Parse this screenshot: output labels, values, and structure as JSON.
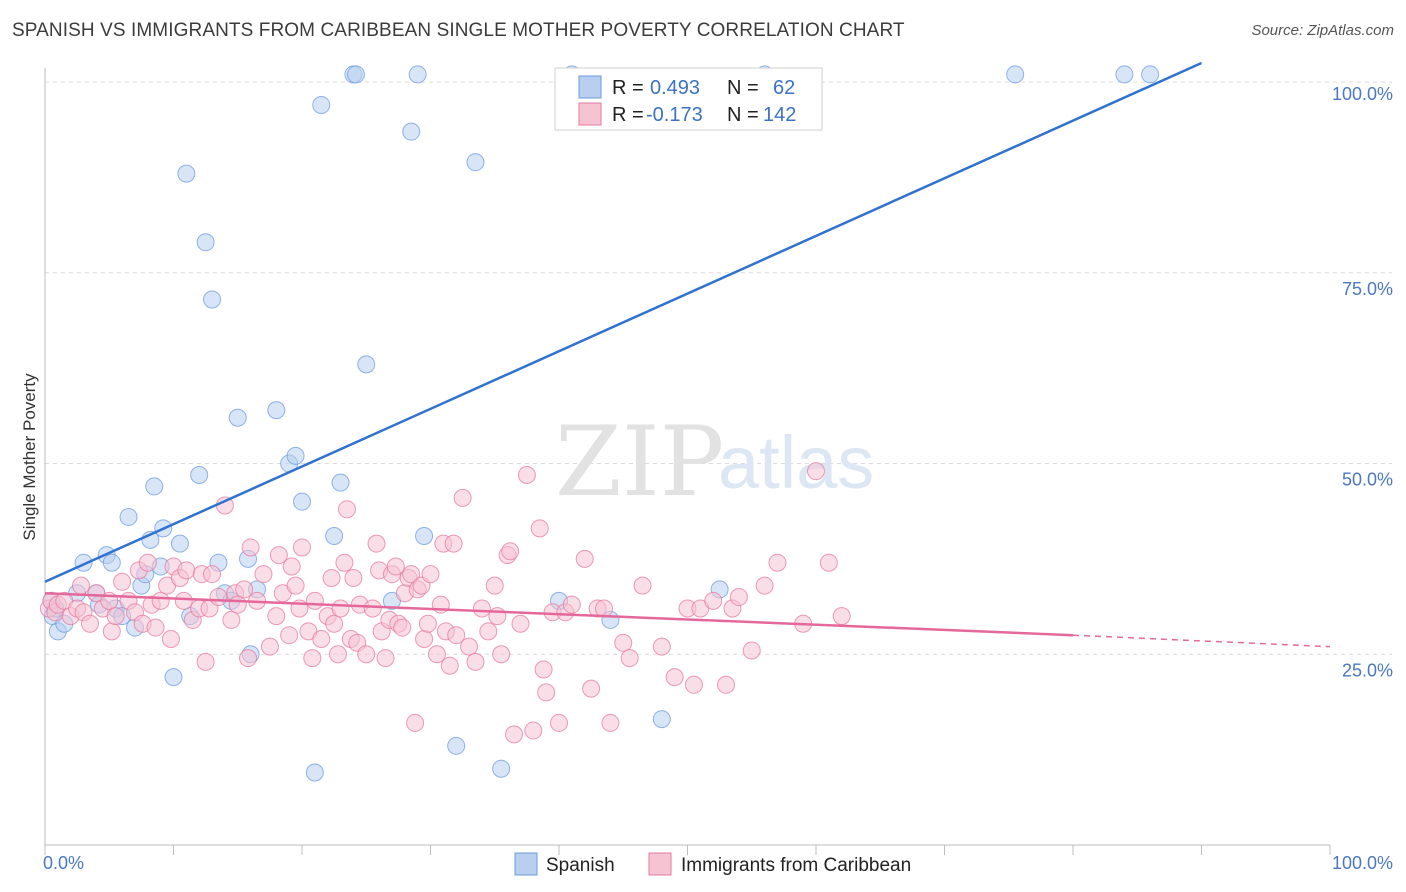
{
  "title": "SPANISH VS IMMIGRANTS FROM CARIBBEAN SINGLE MOTHER POVERTY CORRELATION CHART",
  "source": "Source: ZipAtlas.com",
  "watermark": {
    "zip": "ZIP",
    "atlas": "atlas"
  },
  "legend_box": {
    "rows": [
      {
        "r_label": "R =",
        "r_value": "0.493",
        "n_label": "N =",
        "n_value": "62",
        "color": "#a9c4ec"
      },
      {
        "r_label": "R =",
        "r_value": "-0.173",
        "n_label": "N =",
        "n_value": "142",
        "color": "#f4b3c8"
      }
    ]
  },
  "bottom_legend": {
    "spanish": "Spanish",
    "caribbean": "Immigrants from Caribbean"
  },
  "chart_data": {
    "type": "scatter",
    "title": "SPANISH VS IMMIGRANTS FROM CARIBBEAN SINGLE MOTHER POVERTY CORRELATION CHART",
    "xlabel": "",
    "ylabel": "Single Mother Poverty",
    "xlim": [
      0,
      100
    ],
    "ylim": [
      0,
      105
    ],
    "x_tick_labels": [
      "0.0%",
      "100.0%"
    ],
    "y_tick_labels": [
      "25.0%",
      "50.0%",
      "75.0%",
      "100.0%"
    ],
    "y_ticks": [
      25,
      50,
      75,
      100
    ],
    "grid": true,
    "legend_position": "top-center",
    "series": [
      {
        "name": "Spanish",
        "color": "#6d9be0",
        "fill": "#b8cff0",
        "trend": {
          "x": [
            0,
            90
          ],
          "y": [
            34.5,
            102.5
          ]
        },
        "points": [
          [
            0.5,
            32
          ],
          [
            0.6,
            30
          ],
          [
            0.8,
            31
          ],
          [
            1,
            28
          ],
          [
            1.5,
            29
          ],
          [
            2.5,
            33
          ],
          [
            3,
            37
          ],
          [
            4,
            33
          ],
          [
            4.2,
            31.5
          ],
          [
            4.8,
            38
          ],
          [
            5.2,
            37
          ],
          [
            5.5,
            31
          ],
          [
            6,
            30
          ],
          [
            6.5,
            43
          ],
          [
            7,
            28.5
          ],
          [
            7.5,
            34
          ],
          [
            7.8,
            35.5
          ],
          [
            8.2,
            40
          ],
          [
            8.5,
            47
          ],
          [
            9,
            36.5
          ],
          [
            9.2,
            41.5
          ],
          [
            10,
            22
          ],
          [
            10.5,
            39.5
          ],
          [
            11,
            88
          ],
          [
            11.3,
            30
          ],
          [
            12,
            48.5
          ],
          [
            12.5,
            79
          ],
          [
            13,
            71.5
          ],
          [
            13.5,
            37
          ],
          [
            14,
            33
          ],
          [
            14.5,
            32
          ],
          [
            15,
            56
          ],
          [
            15.8,
            37.5
          ],
          [
            16,
            25
          ],
          [
            16.5,
            33.5
          ],
          [
            18,
            57
          ],
          [
            19,
            50
          ],
          [
            19.5,
            51
          ],
          [
            20,
            45
          ],
          [
            21,
            9.5
          ],
          [
            21.5,
            97
          ],
          [
            22.5,
            40.5
          ],
          [
            23,
            47.5
          ],
          [
            24,
            101
          ],
          [
            24.2,
            101
          ],
          [
            25,
            63
          ],
          [
            27,
            32
          ],
          [
            28.5,
            93.5
          ],
          [
            29,
            101
          ],
          [
            29.5,
            40.5
          ],
          [
            32,
            13
          ],
          [
            33.5,
            89.5
          ],
          [
            35.5,
            10
          ],
          [
            40,
            32
          ],
          [
            41,
            101
          ],
          [
            44,
            29.5
          ],
          [
            48,
            16.5
          ],
          [
            52.5,
            33.5
          ],
          [
            56,
            101
          ],
          [
            75.5,
            101
          ],
          [
            84,
            101
          ],
          [
            86,
            101
          ]
        ]
      },
      {
        "name": "Immigrants from Caribbean",
        "color": "#e77a9f",
        "fill": "#f6c3d3",
        "trend": {
          "x": [
            0,
            80
          ],
          "y": [
            33.0,
            27.5
          ],
          "dash_to": [
            100,
            26.0
          ]
        },
        "points": [
          [
            0.3,
            31
          ],
          [
            0.5,
            32
          ],
          [
            0.8,
            30.5
          ],
          [
            1,
            31.5
          ],
          [
            1.5,
            32
          ],
          [
            2,
            30
          ],
          [
            2.5,
            31
          ],
          [
            2.8,
            34
          ],
          [
            3,
            30.5
          ],
          [
            3.5,
            29
          ],
          [
            4,
            33
          ],
          [
            4.5,
            31
          ],
          [
            5,
            32
          ],
          [
            5.2,
            28
          ],
          [
            5.5,
            30
          ],
          [
            6,
            34.5
          ],
          [
            6.5,
            32
          ],
          [
            7,
            30.5
          ],
          [
            7.3,
            36
          ],
          [
            7.6,
            29
          ],
          [
            8,
            37
          ],
          [
            8.3,
            31.5
          ],
          [
            8.6,
            28.5
          ],
          [
            9,
            32
          ],
          [
            9.5,
            34
          ],
          [
            9.8,
            27
          ],
          [
            10,
            36.5
          ],
          [
            10.5,
            35
          ],
          [
            10.8,
            32
          ],
          [
            11,
            36
          ],
          [
            11.5,
            29.5
          ],
          [
            12,
            31
          ],
          [
            12.2,
            35.5
          ],
          [
            12.5,
            24
          ],
          [
            12.8,
            31
          ],
          [
            13,
            35.5
          ],
          [
            13.5,
            32.5
          ],
          [
            14,
            44.5
          ],
          [
            14.5,
            29.5
          ],
          [
            14.8,
            33
          ],
          [
            15,
            31.5
          ],
          [
            15.5,
            33.5
          ],
          [
            15.8,
            24.5
          ],
          [
            16,
            39
          ],
          [
            16.5,
            32
          ],
          [
            17,
            35.5
          ],
          [
            17.5,
            26
          ],
          [
            18,
            30
          ],
          [
            18.2,
            38
          ],
          [
            18.5,
            33
          ],
          [
            19,
            27.5
          ],
          [
            19.2,
            36.5
          ],
          [
            19.5,
            34
          ],
          [
            19.8,
            31
          ],
          [
            20,
            39
          ],
          [
            20.5,
            28
          ],
          [
            20.8,
            24.5
          ],
          [
            21,
            32
          ],
          [
            21.5,
            27
          ],
          [
            22,
            30
          ],
          [
            22.3,
            35
          ],
          [
            22.5,
            29
          ],
          [
            22.8,
            25
          ],
          [
            23,
            31
          ],
          [
            23.3,
            37
          ],
          [
            23.5,
            44
          ],
          [
            23.8,
            27
          ],
          [
            24,
            35
          ],
          [
            24.3,
            26.5
          ],
          [
            24.5,
            31.5
          ],
          [
            25,
            25
          ],
          [
            25.5,
            31
          ],
          [
            25.8,
            39.5
          ],
          [
            26,
            36
          ],
          [
            26.2,
            28
          ],
          [
            26.5,
            24.5
          ],
          [
            26.8,
            29.5
          ],
          [
            27,
            35.5
          ],
          [
            27.3,
            36.5
          ],
          [
            27.5,
            29
          ],
          [
            27.8,
            28.5
          ],
          [
            28,
            33
          ],
          [
            28.3,
            35
          ],
          [
            28.5,
            35.5
          ],
          [
            28.8,
            16
          ],
          [
            29,
            33.5
          ],
          [
            29.3,
            34
          ],
          [
            29.5,
            27
          ],
          [
            29.8,
            29
          ],
          [
            30,
            35.5
          ],
          [
            30.5,
            25
          ],
          [
            30.8,
            31.5
          ],
          [
            31,
            39.5
          ],
          [
            31.2,
            28
          ],
          [
            31.5,
            23.5
          ],
          [
            31.8,
            39.5
          ],
          [
            32,
            27.5
          ],
          [
            32.5,
            45.5
          ],
          [
            33,
            26
          ],
          [
            33.5,
            24
          ],
          [
            34,
            31
          ],
          [
            34.5,
            28
          ],
          [
            35,
            34
          ],
          [
            35.2,
            30
          ],
          [
            35.5,
            25
          ],
          [
            36,
            38
          ],
          [
            36.2,
            38.5
          ],
          [
            36.5,
            14.5
          ],
          [
            37,
            29
          ],
          [
            37.5,
            48.5
          ],
          [
            38,
            15
          ],
          [
            38.5,
            41.5
          ],
          [
            38.8,
            23
          ],
          [
            39,
            20
          ],
          [
            39.5,
            30.5
          ],
          [
            40,
            16
          ],
          [
            40.5,
            30.5
          ],
          [
            41,
            31.5
          ],
          [
            42,
            37.5
          ],
          [
            42.5,
            20.5
          ],
          [
            43,
            31
          ],
          [
            43.5,
            31
          ],
          [
            44,
            16
          ],
          [
            45,
            26.5
          ],
          [
            45.5,
            24.5
          ],
          [
            46.5,
            34
          ],
          [
            48,
            26
          ],
          [
            49,
            22
          ],
          [
            50,
            31
          ],
          [
            50.5,
            21
          ],
          [
            51,
            31
          ],
          [
            52,
            32
          ],
          [
            53,
            21
          ],
          [
            53.5,
            31
          ],
          [
            54,
            32.5
          ],
          [
            55,
            25.5
          ],
          [
            56,
            34
          ],
          [
            57,
            37
          ],
          [
            59,
            29
          ],
          [
            60,
            49
          ],
          [
            61,
            37
          ],
          [
            62,
            30
          ]
        ]
      }
    ]
  }
}
